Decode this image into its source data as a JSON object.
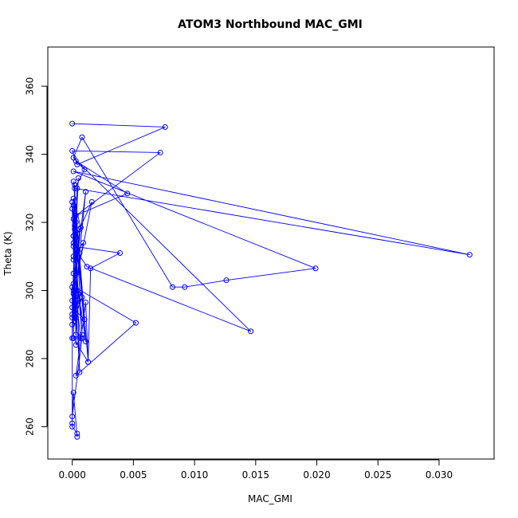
{
  "chart_data": {
    "type": "line",
    "title": "ATOM3 Northbound MAC_GMI",
    "xlabel": "MAC_GMI",
    "ylabel": "Theta (K)",
    "xlim": [
      -0.002,
      0.0345
    ],
    "ylim": [
      250.5,
      371.5
    ],
    "x_ticks": [
      0.0,
      0.005,
      0.01,
      0.015,
      0.02,
      0.025,
      0.03
    ],
    "x_tick_labels": [
      "0.000",
      "0.005",
      "0.010",
      "0.015",
      "0.020",
      "0.025",
      "0.030"
    ],
    "y_ticks": [
      260,
      280,
      300,
      320,
      340,
      360
    ],
    "y_tick_labels": [
      "260",
      "280",
      "300",
      "320",
      "340",
      "360"
    ],
    "grid": false,
    "series": [
      {
        "color": "#0000ff",
        "marker": "open-circle",
        "x": [
          0.0,
          0.0076,
          0.0004,
          0.0,
          0.0072,
          0.0003,
          0.0045,
          0.0003,
          0.001,
          0.0002,
          0.0325,
          0.0001,
          0.0199,
          0.0126,
          0.0092,
          0.0082,
          0.0008,
          0.0001,
          0.0146,
          0.0012,
          0.0001,
          0.0039,
          0.0015,
          0.0013,
          0.0011,
          0.0003,
          0.0052,
          0.0002,
          0.0007,
          0.0003,
          0.0004,
          0.0002,
          0.0,
          0.0001,
          0.0008,
          0.0003,
          0.0001,
          0.0016,
          0.0,
          0.0005,
          0.0001,
          0.0009,
          0.0001,
          0.0002,
          0.0,
          0.0006,
          0.0001,
          0.0011,
          0.0002,
          0.0,
          0.0004,
          0.0001,
          0.0003,
          0.0004,
          0.0001,
          0.0002,
          0.0005,
          0.0001,
          0.001,
          0.0,
          0.0007,
          0.0001,
          0.0003,
          0.0011,
          0.0001,
          0.0006,
          0.0,
          0.0008,
          0.0001,
          0.0013,
          0.0001,
          0.0002,
          0.0006,
          0.0001,
          0.0003,
          0.0005,
          0.0001,
          0.0,
          0.0008,
          0.0,
          0.0001,
          0.0004,
          0.0004,
          0.0,
          0.0,
          0.0,
          0.0
        ],
        "y": [
          349,
          348,
          337,
          341,
          340.5,
          322,
          328.5,
          338,
          335.5,
          330,
          310.5,
          335,
          306.5,
          303,
          301,
          301,
          345,
          339,
          288,
          307,
          313,
          311,
          306.5,
          279,
          296.5,
          275,
          290.5,
          301,
          286,
          284,
          312,
          318,
          326,
          316,
          287,
          320,
          314,
          326,
          297,
          333,
          310,
          314,
          299,
          319,
          293,
          318,
          302,
          329,
          296,
          324,
          300,
          316,
          292,
          330,
          305,
          291,
          299,
          321,
          291.5,
          295,
          318.5,
          327,
          305,
          285,
          325,
          311,
          290,
          298,
          332,
          279,
          286,
          331,
          276,
          309,
          287,
          297,
          300,
          286,
          286,
          263,
          270,
          257,
          258,
          260,
          261,
          301,
          292
        ]
      }
    ]
  }
}
